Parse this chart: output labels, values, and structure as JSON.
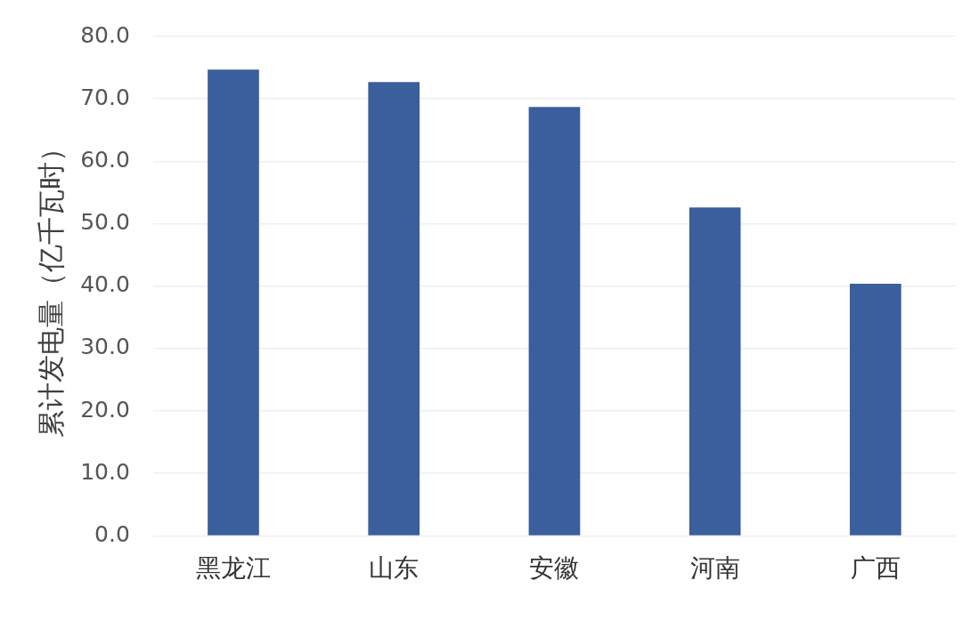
{
  "chart_data": {
    "type": "bar",
    "ylabel": "累计发电量（亿千瓦时）",
    "categories": [
      "黑龙江",
      "山东",
      "安徽",
      "河南",
      "广西"
    ],
    "values": [
      74.7,
      72.7,
      68.7,
      52.6,
      40.4
    ],
    "color": "#3b5e9c",
    "ylim": [
      0,
      80
    ],
    "yticks": [
      {
        "value": 0,
        "label": "0.0"
      },
      {
        "value": 10,
        "label": "10.0"
      },
      {
        "value": 20,
        "label": "20.0"
      },
      {
        "value": 30,
        "label": "30.0"
      },
      {
        "value": 40,
        "label": "40.0"
      },
      {
        "value": 50,
        "label": "50.0"
      },
      {
        "value": 60,
        "label": "60.0"
      },
      {
        "value": 70,
        "label": "70.0"
      },
      {
        "value": 80,
        "label": "80.0"
      }
    ],
    "grid": "y",
    "legend": false
  }
}
